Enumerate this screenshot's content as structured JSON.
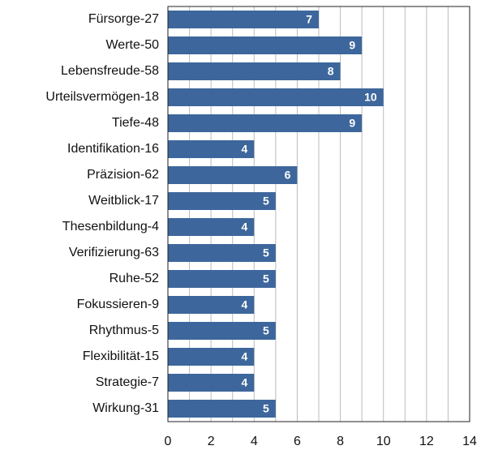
{
  "chart_data": {
    "type": "barh",
    "categories": [
      "Fürsorge-27",
      "Werte-50",
      "Lebensfreude-58",
      "Urteilsvermögen-18",
      "Tiefe-48",
      "Identifikation-16",
      "Präzision-62",
      "Weitblick-17",
      "Thesenbildung-4",
      "Verifizierung-63",
      "Ruhe-52",
      "Fokussieren-9",
      "Rhythmus-5",
      "Flexibilität-15",
      "Strategie-7",
      "Wirkung-31"
    ],
    "values": [
      7,
      9,
      8,
      10,
      9,
      4,
      6,
      5,
      4,
      5,
      5,
      4,
      5,
      4,
      4,
      5
    ],
    "color": "#3d679c",
    "xlim": [
      0,
      14
    ],
    "xticks": [
      0,
      2,
      4,
      6,
      8,
      10,
      12,
      14
    ],
    "xminorticks": [
      1,
      3,
      5,
      7,
      9,
      11,
      13
    ],
    "grid": true
  }
}
